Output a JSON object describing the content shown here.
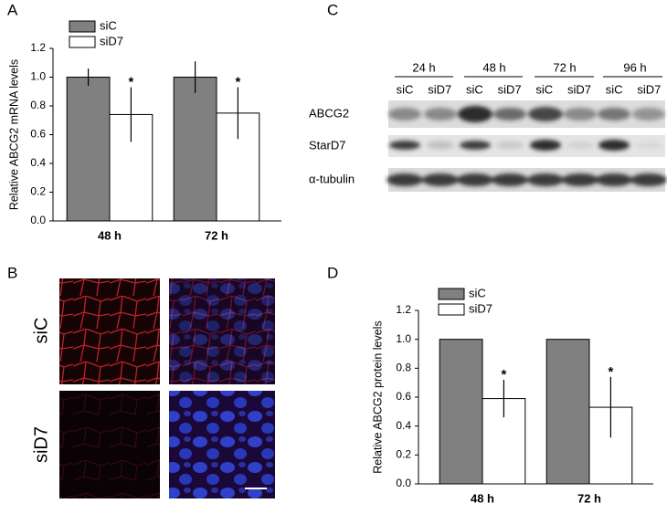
{
  "panel_labels": [
    "A",
    "B",
    "C",
    "D"
  ],
  "chart_data": [
    {
      "type": "bar",
      "ylabel": "Relative ABCG2 mRNA levels",
      "categories": [
        "48 h",
        "72 h"
      ],
      "series": [
        {
          "name": "siC",
          "color": "#808080",
          "values": [
            1.0,
            1.0
          ],
          "errors": [
            0.06,
            0.11
          ]
        },
        {
          "name": "siD7",
          "color": "#ffffff",
          "values": [
            0.74,
            0.75
          ],
          "errors": [
            0.19,
            0.18
          ],
          "annotations": [
            "*",
            "*"
          ]
        }
      ],
      "ylim": [
        0,
        1.2
      ],
      "yticks": [
        {
          "value": 0,
          "label": "0.0"
        },
        0.2,
        0.4,
        0.6,
        0.8,
        {
          "value": 1,
          "label": "1.0"
        },
        1.2
      ],
      "legend": "upper left"
    },
    {
      "type": "bar",
      "ylabel": "Relative ABCG2 protein levels",
      "categories": [
        "48 h",
        "72 h"
      ],
      "series": [
        {
          "name": "siC",
          "color": "#808080",
          "values": [
            1.0,
            1.0
          ]
        },
        {
          "name": "siD7",
          "color": "#ffffff",
          "values": [
            0.59,
            0.53
          ],
          "errors": [
            0.13,
            0.21
          ],
          "annotations": [
            "*",
            "*"
          ]
        }
      ],
      "ylim": [
        0,
        1.2
      ],
      "yticks": [
        {
          "value": 0,
          "label": "0.0"
        },
        0.2,
        0.4,
        0.6,
        0.8,
        {
          "value": 1,
          "label": "1.0"
        },
        1.2
      ],
      "legend": "upper left"
    }
  ],
  "western_blot": {
    "timepoints": [
      "24 h",
      "48 h",
      "72 h",
      "96 h"
    ],
    "lanes": [
      "siC",
      "siD7",
      "siC",
      "siD7",
      "siC",
      "siD7",
      "siC",
      "siD7"
    ],
    "rows": [
      "ABCG2",
      "StarD7",
      "α-tubulin"
    ]
  },
  "microscopy": {
    "rows": [
      "siC",
      "siD7"
    ]
  }
}
